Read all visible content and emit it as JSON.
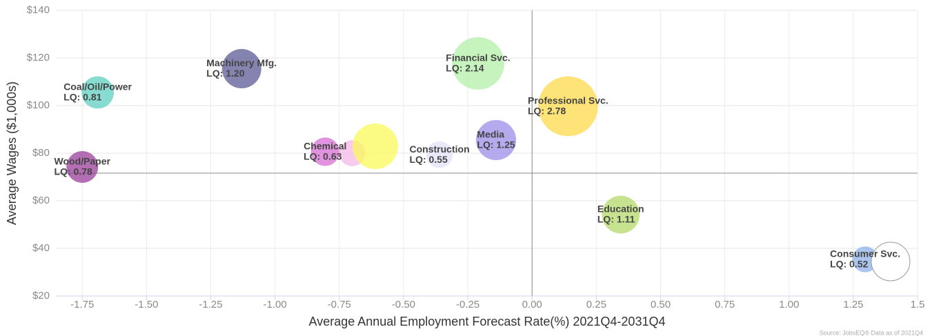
{
  "chart_data": {
    "type": "bubble",
    "x_label": "Average Annual Employment Forecast Rate(%) 2021Q4-2031Q4",
    "y_label": "Average Wages ($1,000s)",
    "source": "Source: JobsEQ® Data as of 2021Q4",
    "labels": [
      "Wood/Paper",
      "Coal/Oil/Power",
      "Machinery Mfg.",
      "Chemical",
      null,
      null,
      "Construction",
      "Media",
      "Financial Svc.",
      "Professional Svc.",
      "Education",
      "Consumer Svc.",
      null
    ],
    "x": [
      -1.75,
      -1.69,
      -1.13,
      -0.805,
      -0.7,
      -0.61,
      -0.36,
      -0.14,
      -0.21,
      0.14,
      0.345,
      1.296,
      1.395
    ],
    "values": [
      74.2,
      105.5,
      115.5,
      80.6,
      80,
      82.9,
      79.4,
      85.5,
      117.7,
      99.7,
      54.2,
      35.4,
      34.5
    ],
    "sizes": [
      0.78,
      0.81,
      1.2,
      0.63,
      0.53,
      1.61,
      0.55,
      1.25,
      2.14,
      2.78,
      1.11,
      0.52,
      1.16
    ],
    "value_labels": [
      "LQ: 0.78",
      "LQ: 0.81",
      "LQ: 1.20",
      "LQ: 0.63",
      null,
      null,
      "LQ: 0.55",
      "LQ: 1.25",
      "LQ: 2.14",
      "LQ: 2.78",
      "LQ: 1.11",
      "LQ: 0.52",
      null
    ],
    "colors": [
      "#9b3f9b",
      "#5fcfc0",
      "#5c5a96",
      "#d76fd6",
      "#f5b8e8",
      "#fafa5a",
      "#e2e2f8",
      "#9d8ee8",
      "#b4f0a8",
      "#fdd94c",
      "#b6d96a",
      "#8fb1ea",
      "#ffffff"
    ],
    "xlim": [
      -1.85,
      1.5
    ],
    "ylim": [
      20,
      140
    ],
    "xticks": [
      -1.75,
      {
        "value": -1.5,
        "label": "-1.50"
      },
      -1.25,
      {
        "value": -1,
        "label": "-1.00"
      },
      -0.75,
      {
        "value": -0.5,
        "label": "-0.50"
      },
      -0.25,
      {
        "value": 0,
        "label": "0.00"
      },
      0.25,
      {
        "value": 0.5,
        "label": "0.50"
      },
      0.75,
      {
        "value": 1,
        "label": "1.00"
      },
      1.25,
      1.5
    ],
    "yticks": [
      {
        "value": 20,
        "label": "$20"
      },
      {
        "value": 40,
        "label": "$40"
      },
      {
        "value": 60,
        "label": "$60"
      },
      {
        "value": 80,
        "label": "$80"
      },
      {
        "value": 100,
        "label": "$100"
      },
      {
        "value": 120,
        "label": "$120"
      },
      {
        "value": 140,
        "label": "$140"
      }
    ],
    "ref_x": 0,
    "ref_y": 71.6,
    "grid": true
  }
}
